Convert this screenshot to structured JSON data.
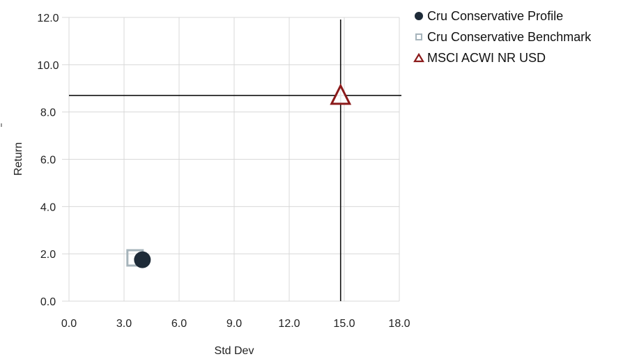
{
  "chart_data": {
    "type": "scatter",
    "title": "",
    "xlabel": "Std Dev",
    "ylabel": "Return",
    "xlim": [
      0,
      18
    ],
    "ylim": [
      0,
      12
    ],
    "xticks": [
      "0.0",
      "3.0",
      "6.0",
      "9.0",
      "12.0",
      "15.0",
      "18.0"
    ],
    "yticks": [
      "0.0",
      "2.0",
      "4.0",
      "6.0",
      "8.0",
      "10.0",
      "12.0"
    ],
    "grid": true,
    "legend_position": "top-right",
    "series": [
      {
        "name": "Cru Conservative Profile",
        "marker": "circle",
        "color": "#1e2b38",
        "x": 4.0,
        "y": 1.75
      },
      {
        "name": "Cru Conservative Benchmark",
        "marker": "square-open",
        "color": "#a6b4bb",
        "x": 3.6,
        "y": 1.8
      },
      {
        "name": "MSCI ACWI NR USD",
        "marker": "triangle-open",
        "color": "#8b1a1a",
        "x": 14.8,
        "y": 8.7
      }
    ],
    "reference_lines": {
      "x": 14.8,
      "y": 8.7
    }
  }
}
